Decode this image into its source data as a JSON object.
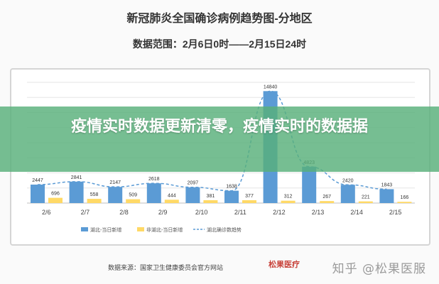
{
  "page": {
    "title": "新冠肺炎全国确诊病例趋势图-分地区",
    "subtitle": "数据范围：2月6日0时——2月15日24时",
    "overlay_text": "疫情实时数据更新清零，疫情实时的数据据",
    "source": "数据来源：国家卫生健康委员会官方网站",
    "source_logo_text": "松果医疗",
    "watermark": "知乎 @松果医服"
  },
  "colors": {
    "hubei_bar": "#5b9bd5",
    "non_hubei_bar": "#ffd966",
    "trend_line": "#5b9bd5",
    "overlay": "#58b07a"
  },
  "chart_data": {
    "type": "bar",
    "categories": [
      "2/6",
      "2/7",
      "2/8",
      "2/9",
      "2/10",
      "2/11",
      "2/12",
      "2/13",
      "2/14",
      "2/15"
    ],
    "series": [
      {
        "name": "湖北-当日新增",
        "type": "bar",
        "values": [
          2447,
          2841,
          2147,
          2618,
          2097,
          1638,
          14840,
          4823,
          2420,
          1843
        ]
      },
      {
        "name": "非湖北-当日新增",
        "type": "bar",
        "values": [
          696,
          558,
          509,
          444,
          381,
          377,
          312,
          267,
          221,
          166
        ]
      },
      {
        "name": "湖北确诊数趋势",
        "type": "line",
        "style": "dashed",
        "values": [
          2447,
          2841,
          2147,
          2618,
          2097,
          1638,
          14840,
          4823,
          2420,
          1843
        ]
      }
    ],
    "ylim": [
      0,
      16000
    ],
    "grid": true,
    "legend_position": "bottom"
  }
}
